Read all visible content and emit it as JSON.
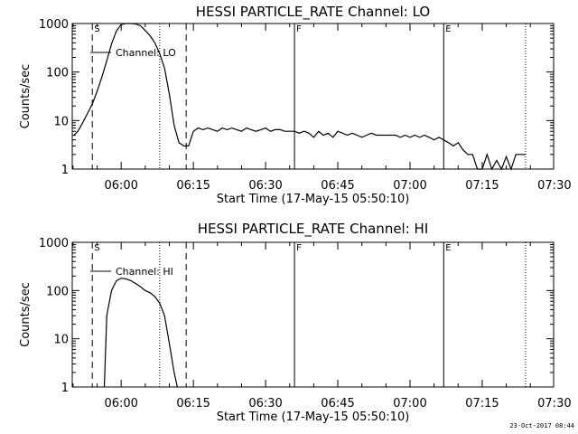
{
  "chart_data": [
    {
      "type": "line",
      "title": "HESSI PARTICLE_RATE Channel: LO",
      "ylabel": "Counts/sec",
      "xlabel": "Start Time (17-May-15 05:50:10)",
      "y_scale": "log",
      "ylim": [
        1,
        1000
      ],
      "xlim_minutes_after_0550": [
        -0.1667,
        99.8333
      ],
      "x_ticks": [
        "06:00",
        "06:15",
        "06:30",
        "06:45",
        "07:00",
        "07:15",
        "07:30"
      ],
      "y_ticks": [
        "1",
        "10",
        "100",
        "1000"
      ],
      "legend": "Channel: LO",
      "legend_position": "top-left",
      "markers": [
        {
          "label": "S",
          "time": "05:54",
          "style": "dashed"
        },
        {
          "label": "",
          "time": "06:08",
          "style": "dotted"
        },
        {
          "label": "",
          "time": "06:13:30",
          "style": "dashed"
        },
        {
          "label": "F",
          "time": "06:36",
          "style": "solid"
        },
        {
          "label": "E",
          "time": "07:07",
          "style": "solid"
        },
        {
          "label": "",
          "time": "07:24",
          "style": "dotted"
        }
      ],
      "series": [
        {
          "x": [
            "05:50:10",
            "05:51",
            "05:52",
            "05:53",
            "05:54",
            "05:55",
            "05:56",
            "05:57",
            "05:58",
            "05:59",
            "06:00",
            "06:01",
            "06:02",
            "06:03",
            "06:04",
            "06:05",
            "06:06",
            "06:07",
            "06:08",
            "06:09",
            "06:10",
            "06:11",
            "06:12",
            "06:13",
            "06:14",
            "06:15",
            "06:16",
            "06:17",
            "06:18",
            "06:19",
            "06:20",
            "06:21",
            "06:22",
            "06:23",
            "06:24",
            "06:25",
            "06:26",
            "06:27",
            "06:28",
            "06:29",
            "06:30",
            "06:31",
            "06:32",
            "06:33",
            "06:34",
            "06:35",
            "06:36",
            "06:37",
            "06:38",
            "06:39",
            "06:40",
            "06:41",
            "06:42",
            "06:43",
            "06:44",
            "06:45",
            "06:46",
            "06:47",
            "06:48",
            "06:49",
            "06:50",
            "06:51",
            "06:52",
            "06:53",
            "06:54",
            "06:55",
            "06:56",
            "06:57",
            "06:58",
            "06:59",
            "07:00",
            "07:01",
            "07:02",
            "07:03",
            "07:04",
            "07:05",
            "07:06",
            "07:07",
            "07:08",
            "07:09",
            "07:10",
            "07:11",
            "07:12",
            "07:13",
            "07:14",
            "07:15",
            "07:16",
            "07:17",
            "07:18",
            "07:19",
            "07:20",
            "07:21",
            "07:22",
            "07:23",
            "07:24"
          ],
          "y": [
            5,
            6,
            9,
            14,
            22,
            40,
            80,
            170,
            380,
            700,
            950,
            1000,
            1000,
            980,
            900,
            720,
            560,
            400,
            240,
            120,
            35,
            8,
            3.5,
            3,
            3,
            6,
            7,
            6.5,
            7,
            6.5,
            6,
            7,
            6.5,
            7,
            6.5,
            6,
            7,
            6.5,
            6,
            6.5,
            7,
            6,
            6.5,
            6.5,
            6,
            6,
            6,
            5.5,
            6,
            5.5,
            4.5,
            6,
            5,
            5.5,
            4.5,
            6,
            5.5,
            5,
            5.5,
            5,
            4.5,
            5,
            5.5,
            5,
            5,
            5,
            5,
            5,
            4.5,
            5,
            4.5,
            5,
            4.5,
            5,
            4.5,
            4,
            4.5,
            4,
            3.5,
            3,
            3.5,
            2.5,
            2,
            2,
            1,
            1,
            2,
            1,
            1.5,
            1,
            1.8,
            1,
            2,
            2,
            2
          ]
        }
      ]
    },
    {
      "type": "line",
      "title": "HESSI PARTICLE_RATE Channel: HI",
      "ylabel": "Counts/sec",
      "xlabel": "Start Time (17-May-15 05:50:10)",
      "y_scale": "log",
      "ylim": [
        1,
        1000
      ],
      "xlim_minutes_after_0550": [
        -0.1667,
        99.8333
      ],
      "x_ticks": [
        "06:00",
        "06:15",
        "06:30",
        "06:45",
        "07:00",
        "07:15",
        "07:30"
      ],
      "y_ticks": [
        "1",
        "10",
        "100",
        "1000"
      ],
      "legend": "Channel: HI",
      "legend_position": "top-left",
      "markers": [
        {
          "label": "S",
          "time": "05:54",
          "style": "dashed"
        },
        {
          "label": "",
          "time": "06:08",
          "style": "dotted"
        },
        {
          "label": "",
          "time": "06:13:30",
          "style": "dashed"
        },
        {
          "label": "F",
          "time": "06:36",
          "style": "solid"
        },
        {
          "label": "E",
          "time": "07:07",
          "style": "solid"
        },
        {
          "label": "",
          "time": "07:24",
          "style": "dotted"
        }
      ],
      "series": [
        {
          "x": [
            "05:56:30",
            "05:57",
            "05:58",
            "05:59",
            "06:00",
            "06:01",
            "06:02",
            "06:03",
            "06:04",
            "06:05",
            "06:06",
            "06:07",
            "06:08",
            "06:09",
            "06:10",
            "06:11",
            "06:11:40"
          ],
          "y": [
            1,
            30,
            100,
            160,
            180,
            175,
            160,
            140,
            120,
            100,
            90,
            75,
            55,
            30,
            8,
            2,
            1
          ]
        }
      ]
    }
  ],
  "timestamp": "23-Oct-2017 08:44"
}
